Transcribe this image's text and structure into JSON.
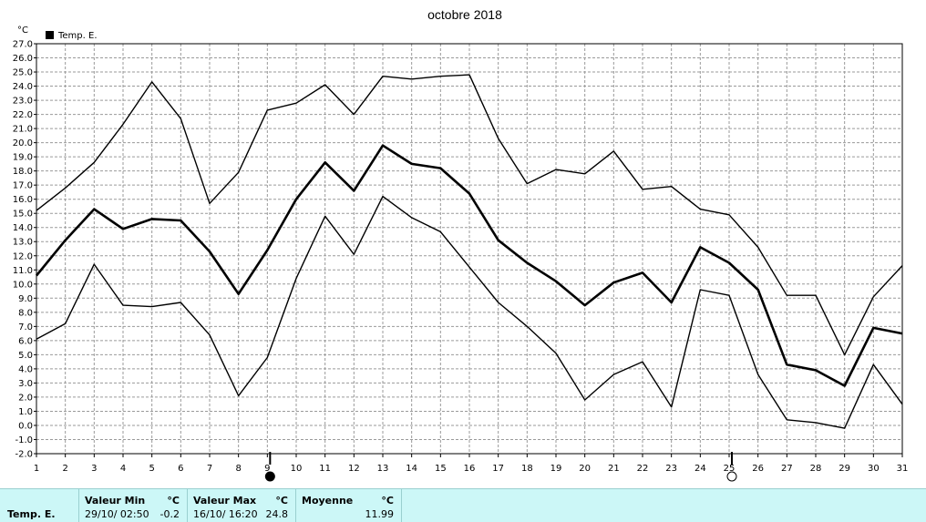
{
  "chart_data": {
    "type": "line",
    "title": "octobre 2018",
    "y_unit": "°C",
    "ylim": [
      -2.0,
      27.0
    ],
    "y_ticks": [
      "-2.0",
      "-1.0",
      "0.0",
      "1.0",
      "2.0",
      "3.0",
      "4.0",
      "5.0",
      "6.0",
      "7.0",
      "8.0",
      "9.0",
      "10.0",
      "11.0",
      "12.0",
      "13.0",
      "14.0",
      "15.0",
      "16.0",
      "17.0",
      "18.0",
      "19.0",
      "20.0",
      "21.0",
      "22.0",
      "23.0",
      "24.0",
      "25.0",
      "26.0",
      "27.0"
    ],
    "x": [
      1,
      2,
      3,
      4,
      5,
      6,
      7,
      8,
      9,
      10,
      11,
      12,
      13,
      14,
      15,
      16,
      17,
      18,
      19,
      20,
      21,
      22,
      23,
      24,
      25,
      26,
      27,
      28,
      29,
      30,
      31
    ],
    "grid": true,
    "legend": "top-left",
    "series": [
      {
        "name": "Temp. E.",
        "role": "mean",
        "color": "#000000",
        "values": [
          10.6,
          13.1,
          15.3,
          13.9,
          14.6,
          14.5,
          12.3,
          9.3,
          12.4,
          16.0,
          18.6,
          16.6,
          19.8,
          18.5,
          18.2,
          16.4,
          13.1,
          11.5,
          10.2,
          8.5,
          10.1,
          10.8,
          8.7,
          12.6,
          11.5,
          9.6,
          4.3,
          3.9,
          2.8,
          6.9,
          6.5
        ]
      },
      {
        "role": "max",
        "color": "#000000",
        "values": [
          15.2,
          16.8,
          18.6,
          21.3,
          24.3,
          21.7,
          15.7,
          17.9,
          22.3,
          22.8,
          24.1,
          22.0,
          24.7,
          24.5,
          24.7,
          24.8,
          20.3,
          17.1,
          18.1,
          17.8,
          19.4,
          16.7,
          16.9,
          15.3,
          14.9,
          12.6,
          9.2,
          9.2,
          5.0,
          9.1,
          11.3
        ]
      },
      {
        "role": "min",
        "color": "#000000",
        "values": [
          6.1,
          7.2,
          11.4,
          8.5,
          8.4,
          8.7,
          6.4,
          2.1,
          4.8,
          10.4,
          14.8,
          12.1,
          16.2,
          14.7,
          13.7,
          11.2,
          8.7,
          7.0,
          5.1,
          1.8,
          3.6,
          4.5,
          1.3,
          9.6,
          9.2,
          3.6,
          0.4,
          0.2,
          -0.2,
          4.3,
          1.5
        ]
      }
    ],
    "moon_markers": [
      {
        "day": 9,
        "phase": "new-moon"
      },
      {
        "day": 25,
        "phase": "full-moon"
      }
    ]
  },
  "stats": {
    "series_label": "Temp. E.",
    "min": {
      "header": "Valeur Min",
      "unit": "°C",
      "datetime": "29/10/  02:50",
      "value": "-0.2"
    },
    "max": {
      "header": "Valeur Max",
      "unit": "°C",
      "datetime": "16/10/  16:20",
      "value": "24.8"
    },
    "mean": {
      "header": "Moyenne",
      "unit": "°C",
      "value": "11.99"
    }
  }
}
